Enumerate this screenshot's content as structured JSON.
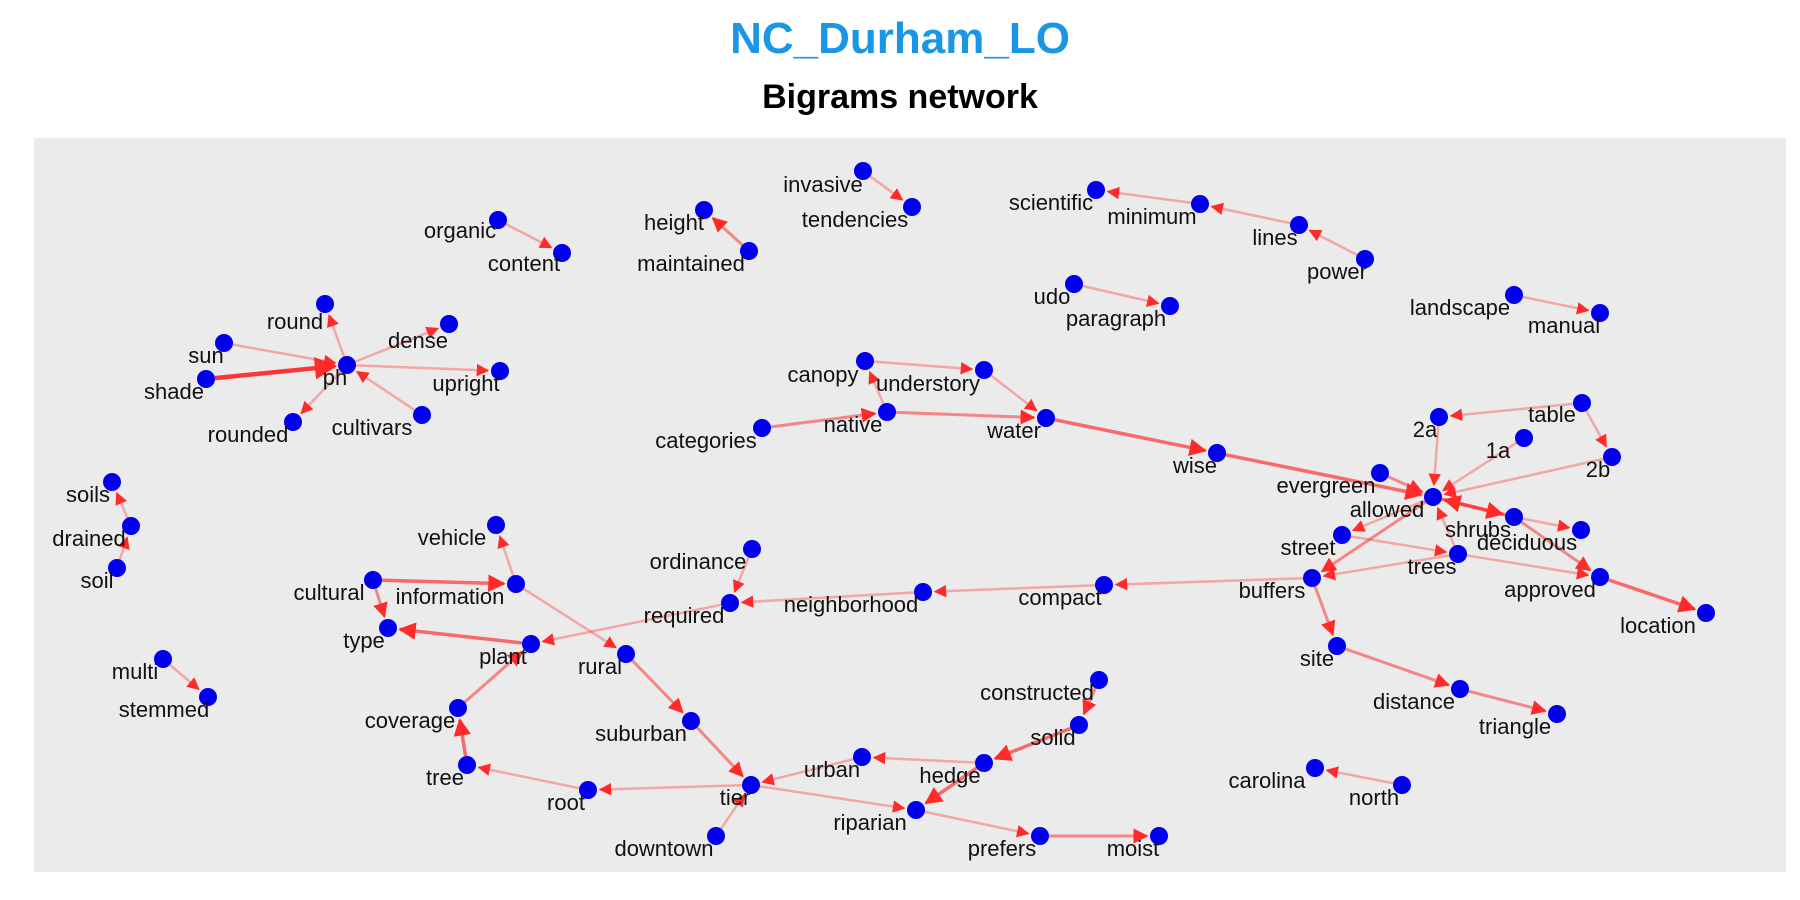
{
  "title": "NC_Durham_LO",
  "subtitle": "Bigrams network",
  "colors": {
    "title": "#1a96e6",
    "node": "#0000ee",
    "edge": "#ff2b2b",
    "panel": "#ebebeb"
  },
  "chart_data": {
    "type": "network",
    "nodes": [
      "organic",
      "content",
      "height",
      "maintained",
      "invasive",
      "tendencies",
      "scientific",
      "minimum",
      "lines",
      "power",
      "udo",
      "paragraph",
      "landscape",
      "manual",
      "round",
      "sun",
      "dense",
      "shade",
      "ph",
      "upright",
      "rounded",
      "cultivars",
      "canopy",
      "understory",
      "categories",
      "native",
      "water",
      "wise",
      "2a",
      "table",
      "1a",
      "2b",
      "evergreen",
      "allowed",
      "shrubs",
      "deciduous",
      "street",
      "trees",
      "approved",
      "location",
      "buffers",
      "compact",
      "neighborhood",
      "ordinance",
      "required",
      "soils",
      "drained",
      "soil",
      "vehicle",
      "cultural",
      "information",
      "type",
      "plant",
      "rural",
      "multi",
      "stemmed",
      "coverage",
      "suburban",
      "tree",
      "root",
      "tier",
      "downtown",
      "urban",
      "hedge",
      "riparian",
      "prefers",
      "moist",
      "constructed",
      "solid",
      "site",
      "distance",
      "triangle",
      "carolina",
      "north"
    ],
    "edges": [
      {
        "from": "organic",
        "to": "content",
        "weight": 1
      },
      {
        "from": "maintained",
        "to": "height",
        "weight": 2
      },
      {
        "from": "invasive",
        "to": "tendencies",
        "weight": 1
      },
      {
        "from": "minimum",
        "to": "scientific",
        "weight": 1
      },
      {
        "from": "lines",
        "to": "minimum",
        "weight": 1
      },
      {
        "from": "power",
        "to": "lines",
        "weight": 1
      },
      {
        "from": "udo",
        "to": "paragraph",
        "weight": 1
      },
      {
        "from": "landscape",
        "to": "manual",
        "weight": 1
      },
      {
        "from": "shade",
        "to": "ph",
        "weight": 5
      },
      {
        "from": "sun",
        "to": "ph",
        "weight": 1
      },
      {
        "from": "ph",
        "to": "round",
        "weight": 1
      },
      {
        "from": "ph",
        "to": "dense",
        "weight": 1
      },
      {
        "from": "ph",
        "to": "upright",
        "weight": 1
      },
      {
        "from": "ph",
        "to": "rounded",
        "weight": 1
      },
      {
        "from": "cultivars",
        "to": "ph",
        "weight": 1
      },
      {
        "from": "canopy",
        "to": "understory",
        "weight": 1
      },
      {
        "from": "native",
        "to": "canopy",
        "weight": 1
      },
      {
        "from": "understory",
        "to": "water",
        "weight": 1
      },
      {
        "from": "categories",
        "to": "native",
        "weight": 2
      },
      {
        "from": "native",
        "to": "water",
        "weight": 2
      },
      {
        "from": "water",
        "to": "wise",
        "weight": 3
      },
      {
        "from": "wise",
        "to": "allowed",
        "weight": 3
      },
      {
        "from": "table",
        "to": "2a",
        "weight": 1
      },
      {
        "from": "table",
        "to": "2b",
        "weight": 1
      },
      {
        "from": "2a",
        "to": "allowed",
        "weight": 1
      },
      {
        "from": "1a",
        "to": "allowed",
        "weight": 1
      },
      {
        "from": "2b",
        "to": "allowed",
        "weight": 1
      },
      {
        "from": "evergreen",
        "to": "allowed",
        "weight": 2
      },
      {
        "from": "shrubs",
        "to": "allowed",
        "weight": 3
      },
      {
        "from": "allowed",
        "to": "shrubs",
        "weight": 3
      },
      {
        "from": "shrubs",
        "to": "deciduous",
        "weight": 1
      },
      {
        "from": "allowed",
        "to": "street",
        "weight": 1
      },
      {
        "from": "allowed",
        "to": "buffers",
        "weight": 2
      },
      {
        "from": "street",
        "to": "trees",
        "weight": 1
      },
      {
        "from": "trees",
        "to": "allowed",
        "weight": 1
      },
      {
        "from": "trees",
        "to": "buffers",
        "weight": 1
      },
      {
        "from": "trees",
        "to": "approved",
        "weight": 1
      },
      {
        "from": "shrubs",
        "to": "approved",
        "weight": 2
      },
      {
        "from": "approved",
        "to": "location",
        "weight": 3
      },
      {
        "from": "buffers",
        "to": "compact",
        "weight": 1
      },
      {
        "from": "compact",
        "to": "neighborhood",
        "weight": 1
      },
      {
        "from": "neighborhood",
        "to": "required",
        "weight": 1
      },
      {
        "from": "ordinance",
        "to": "required",
        "weight": 1
      },
      {
        "from": "required",
        "to": "plant",
        "weight": 1
      },
      {
        "from": "buffers",
        "to": "site",
        "weight": 2
      },
      {
        "from": "site",
        "to": "distance",
        "weight": 2
      },
      {
        "from": "distance",
        "to": "triangle",
        "weight": 2
      },
      {
        "from": "drained",
        "to": "soils",
        "weight": 1
      },
      {
        "from": "soil",
        "to": "drained",
        "weight": 1
      },
      {
        "from": "information",
        "to": "vehicle",
        "weight": 1
      },
      {
        "from": "cultural",
        "to": "information",
        "weight": 3
      },
      {
        "from": "cultural",
        "to": "type",
        "weight": 2
      },
      {
        "from": "plant",
        "to": "type",
        "weight": 3
      },
      {
        "from": "information",
        "to": "rural",
        "weight": 1
      },
      {
        "from": "coverage",
        "to": "plant",
        "weight": 2
      },
      {
        "from": "tree",
        "to": "coverage",
        "weight": 3
      },
      {
        "from": "multi",
        "to": "stemmed",
        "weight": 1
      },
      {
        "from": "rural",
        "to": "suburban",
        "weight": 2
      },
      {
        "from": "suburban",
        "to": "tier",
        "weight": 2
      },
      {
        "from": "root",
        "to": "tree",
        "weight": 1
      },
      {
        "from": "tier",
        "to": "root",
        "weight": 1
      },
      {
        "from": "downtown",
        "to": "tier",
        "weight": 1
      },
      {
        "from": "urban",
        "to": "tier",
        "weight": 1
      },
      {
        "from": "tier",
        "to": "riparian",
        "weight": 1
      },
      {
        "from": "hedge",
        "to": "urban",
        "weight": 1
      },
      {
        "from": "hedge",
        "to": "riparian",
        "weight": 3
      },
      {
        "from": "riparian",
        "to": "prefers",
        "weight": 1
      },
      {
        "from": "prefers",
        "to": "moist",
        "weight": 2
      },
      {
        "from": "solid",
        "to": "hedge",
        "weight": 3
      },
      {
        "from": "constructed",
        "to": "solid",
        "weight": 2
      },
      {
        "from": "north",
        "to": "carolina",
        "weight": 1
      }
    ]
  }
}
